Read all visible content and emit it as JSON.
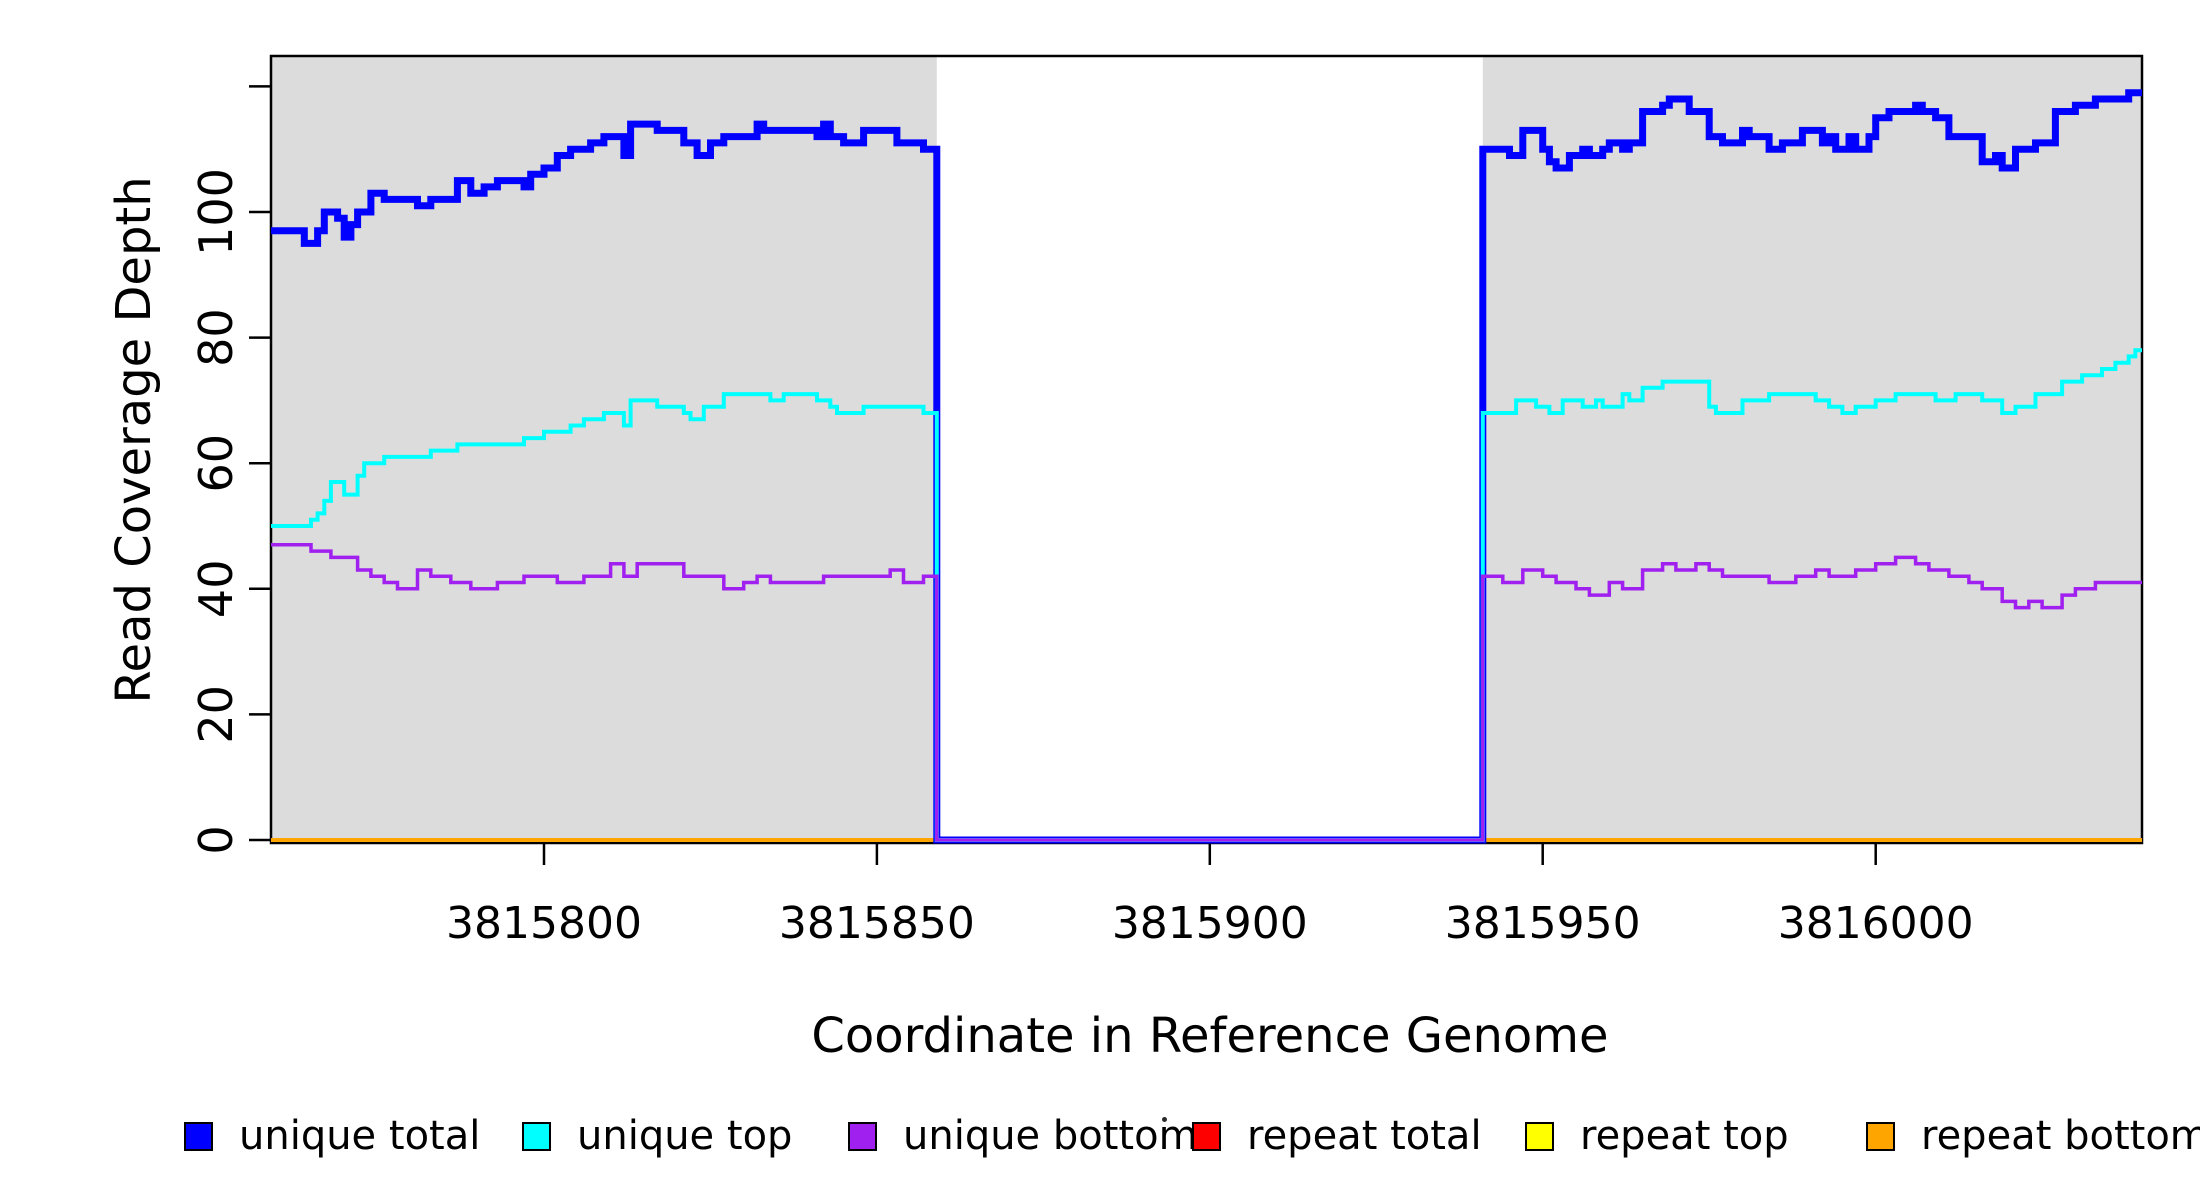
{
  "figure": {
    "background_color": "#ffffff",
    "panel_shade_color": "#DCDCDC",
    "box_color": "#000000"
  },
  "legend": {
    "items": [
      {
        "label": "unique total",
        "color": "#0000FF"
      },
      {
        "label": "unique top",
        "color": "#00FFFF"
      },
      {
        "label": "unique bottom",
        "color": "#A020F0"
      },
      {
        "label": "repeat total",
        "color": "#FF0000"
      },
      {
        "label": "repeat top",
        "color": "#FFFF00"
      },
      {
        "label": "repeat bottom",
        "color": "#FFA500"
      }
    ]
  },
  "chart_data": {
    "type": "line",
    "subtype": "step-coverage",
    "title": "",
    "xlabel": "Coordinate in Reference Genome",
    "ylabel": "Read Coverage Depth",
    "xlim": [
      3815759,
      3816040
    ],
    "ylim": [
      0,
      125
    ],
    "grid": false,
    "legend_position": "bottom",
    "x_ticks": [
      {
        "v": 3815800,
        "label": "3815800"
      },
      {
        "v": 3815850,
        "label": "3815850"
      },
      {
        "v": 3815900,
        "label": "3815900"
      },
      {
        "v": 3815950,
        "label": "3815950"
      },
      {
        "v": 3816000,
        "label": "3816000"
      }
    ],
    "y_ticks": [
      {
        "v": 0,
        "label": "0"
      },
      {
        "v": 20,
        "label": "20"
      },
      {
        "v": 40,
        "label": "40"
      },
      {
        "v": 60,
        "label": "60"
      },
      {
        "v": 80,
        "label": "80"
      },
      {
        "v": 100,
        "label": "100"
      },
      {
        "v": 120,
        "label": ""
      }
    ],
    "covered_regions": [
      [
        3815759,
        3815859
      ],
      [
        3815941,
        3816040
      ]
    ],
    "coverage_gap": [
      3815859,
      3815941
    ],
    "draw_order": [
      "repeat total",
      "repeat top",
      "repeat bottom",
      "unique total",
      "unique top",
      "unique bottom"
    ],
    "series": [
      {
        "name": "unique total",
        "color": "#0000FF",
        "width": 7,
        "points": [
          [
            3815759,
            97
          ],
          [
            3815764,
            95
          ],
          [
            3815766,
            97
          ],
          [
            3815767,
            100
          ],
          [
            3815769,
            99
          ],
          [
            3815770,
            96
          ],
          [
            3815771,
            98
          ],
          [
            3815772,
            100
          ],
          [
            3815774,
            103
          ],
          [
            3815776,
            102
          ],
          [
            3815781,
            101
          ],
          [
            3815783,
            102
          ],
          [
            3815787,
            105
          ],
          [
            3815789,
            103
          ],
          [
            3815791,
            104
          ],
          [
            3815793,
            105
          ],
          [
            3815797,
            104
          ],
          [
            3815798,
            106
          ],
          [
            3815800,
            107
          ],
          [
            3815802,
            109
          ],
          [
            3815804,
            110
          ],
          [
            3815807,
            111
          ],
          [
            3815809,
            112
          ],
          [
            3815812,
            109
          ],
          [
            3815813,
            114
          ],
          [
            3815817,
            113
          ],
          [
            3815821,
            111
          ],
          [
            3815823,
            109
          ],
          [
            3815825,
            111
          ],
          [
            3815827,
            112
          ],
          [
            3815832,
            114
          ],
          [
            3815833,
            113
          ],
          [
            3815841,
            112
          ],
          [
            3815842,
            114
          ],
          [
            3815843,
            112
          ],
          [
            3815845,
            111
          ],
          [
            3815848,
            113
          ],
          [
            3815853,
            111
          ],
          [
            3815857,
            110
          ],
          [
            3815859,
            0
          ],
          [
            3815941,
            110
          ],
          [
            3815945,
            109
          ],
          [
            3815947,
            113
          ],
          [
            3815950,
            110
          ],
          [
            3815951,
            108
          ],
          [
            3815952,
            107
          ],
          [
            3815954,
            109
          ],
          [
            3815956,
            110
          ],
          [
            3815957,
            109
          ],
          [
            3815959,
            110
          ],
          [
            3815960,
            111
          ],
          [
            3815962,
            110
          ],
          [
            3815963,
            111
          ],
          [
            3815965,
            116
          ],
          [
            3815968,
            117
          ],
          [
            3815969,
            118
          ],
          [
            3815972,
            116
          ],
          [
            3815975,
            112
          ],
          [
            3815977,
            111
          ],
          [
            3815980,
            113
          ],
          [
            3815981,
            112
          ],
          [
            3815984,
            110
          ],
          [
            3815986,
            111
          ],
          [
            3815989,
            113
          ],
          [
            3815992,
            111
          ],
          [
            3815993,
            112
          ],
          [
            3815994,
            110
          ],
          [
            3815996,
            112
          ],
          [
            3815997,
            110
          ],
          [
            3815999,
            112
          ],
          [
            3816000,
            115
          ],
          [
            3816002,
            116
          ],
          [
            3816006,
            117
          ],
          [
            3816007,
            116
          ],
          [
            3816009,
            115
          ],
          [
            3816011,
            112
          ],
          [
            3816016,
            108
          ],
          [
            3816018,
            109
          ],
          [
            3816019,
            107
          ],
          [
            3816021,
            110
          ],
          [
            3816024,
            111
          ],
          [
            3816027,
            116
          ],
          [
            3816030,
            117
          ],
          [
            3816033,
            118
          ],
          [
            3816038,
            119
          ]
        ]
      },
      {
        "name": "unique top",
        "color": "#00FFFF",
        "width": 4,
        "points": [
          [
            3815759,
            50
          ],
          [
            3815765,
            51
          ],
          [
            3815766,
            52
          ],
          [
            3815767,
            54
          ],
          [
            3815768,
            57
          ],
          [
            3815770,
            55
          ],
          [
            3815772,
            58
          ],
          [
            3815773,
            60
          ],
          [
            3815776,
            61
          ],
          [
            3815783,
            62
          ],
          [
            3815787,
            63
          ],
          [
            3815797,
            64
          ],
          [
            3815800,
            65
          ],
          [
            3815804,
            66
          ],
          [
            3815806,
            67
          ],
          [
            3815809,
            68
          ],
          [
            3815812,
            66
          ],
          [
            3815813,
            70
          ],
          [
            3815817,
            69
          ],
          [
            3815821,
            68
          ],
          [
            3815822,
            67
          ],
          [
            3815824,
            69
          ],
          [
            3815827,
            71
          ],
          [
            3815834,
            70
          ],
          [
            3815836,
            71
          ],
          [
            3815841,
            70
          ],
          [
            3815843,
            69
          ],
          [
            3815844,
            68
          ],
          [
            3815848,
            69
          ],
          [
            3815857,
            68
          ],
          [
            3815859,
            0
          ],
          [
            3815941,
            68
          ],
          [
            3815946,
            70
          ],
          [
            3815949,
            69
          ],
          [
            3815951,
            68
          ],
          [
            3815953,
            70
          ],
          [
            3815956,
            69
          ],
          [
            3815958,
            70
          ],
          [
            3815959,
            69
          ],
          [
            3815962,
            71
          ],
          [
            3815963,
            70
          ],
          [
            3815965,
            72
          ],
          [
            3815968,
            73
          ],
          [
            3815975,
            69
          ],
          [
            3815976,
            68
          ],
          [
            3815980,
            70
          ],
          [
            3815984,
            71
          ],
          [
            3815991,
            70
          ],
          [
            3815993,
            69
          ],
          [
            3815995,
            68
          ],
          [
            3815997,
            69
          ],
          [
            3816000,
            70
          ],
          [
            3816003,
            71
          ],
          [
            3816009,
            70
          ],
          [
            3816012,
            71
          ],
          [
            3816016,
            70
          ],
          [
            3816019,
            68
          ],
          [
            3816021,
            69
          ],
          [
            3816024,
            71
          ],
          [
            3816028,
            73
          ],
          [
            3816031,
            74
          ],
          [
            3816034,
            75
          ],
          [
            3816036,
            76
          ],
          [
            3816038,
            77
          ],
          [
            3816039,
            78
          ]
        ]
      },
      {
        "name": "unique bottom",
        "color": "#A020F0",
        "width": 3.5,
        "points": [
          [
            3815759,
            47
          ],
          [
            3815765,
            46
          ],
          [
            3815768,
            45
          ],
          [
            3815772,
            43
          ],
          [
            3815774,
            42
          ],
          [
            3815776,
            41
          ],
          [
            3815778,
            40
          ],
          [
            3815781,
            43
          ],
          [
            3815783,
            42
          ],
          [
            3815786,
            41
          ],
          [
            3815789,
            40
          ],
          [
            3815793,
            41
          ],
          [
            3815797,
            42
          ],
          [
            3815802,
            41
          ],
          [
            3815806,
            42
          ],
          [
            3815810,
            44
          ],
          [
            3815812,
            42
          ],
          [
            3815814,
            44
          ],
          [
            3815821,
            42
          ],
          [
            3815827,
            40
          ],
          [
            3815830,
            41
          ],
          [
            3815832,
            42
          ],
          [
            3815834,
            41
          ],
          [
            3815842,
            42
          ],
          [
            3815852,
            43
          ],
          [
            3815854,
            41
          ],
          [
            3815857,
            42
          ],
          [
            3815859,
            0
          ],
          [
            3815941,
            42
          ],
          [
            3815944,
            41
          ],
          [
            3815947,
            43
          ],
          [
            3815950,
            42
          ],
          [
            3815952,
            41
          ],
          [
            3815955,
            40
          ],
          [
            3815957,
            39
          ],
          [
            3815960,
            41
          ],
          [
            3815962,
            40
          ],
          [
            3815965,
            43
          ],
          [
            3815968,
            44
          ],
          [
            3815970,
            43
          ],
          [
            3815973,
            44
          ],
          [
            3815975,
            43
          ],
          [
            3815977,
            42
          ],
          [
            3815984,
            41
          ],
          [
            3815988,
            42
          ],
          [
            3815991,
            43
          ],
          [
            3815993,
            42
          ],
          [
            3815997,
            43
          ],
          [
            3816000,
            44
          ],
          [
            3816003,
            45
          ],
          [
            3816006,
            44
          ],
          [
            3816008,
            43
          ],
          [
            3816011,
            42
          ],
          [
            3816014,
            41
          ],
          [
            3816016,
            40
          ],
          [
            3816019,
            38
          ],
          [
            3816021,
            37
          ],
          [
            3816023,
            38
          ],
          [
            3816025,
            37
          ],
          [
            3816028,
            39
          ],
          [
            3816030,
            40
          ],
          [
            3816033,
            41
          ]
        ]
      },
      {
        "name": "repeat total",
        "color": "#FF0000",
        "width": 4,
        "points": [
          [
            3815759,
            0
          ]
        ]
      },
      {
        "name": "repeat top",
        "color": "#FFFF00",
        "width": 4,
        "points": [
          [
            3815759,
            0
          ]
        ]
      },
      {
        "name": "repeat bottom",
        "color": "#FFA500",
        "width": 4,
        "points": [
          [
            3815759,
            0
          ]
        ]
      }
    ]
  }
}
